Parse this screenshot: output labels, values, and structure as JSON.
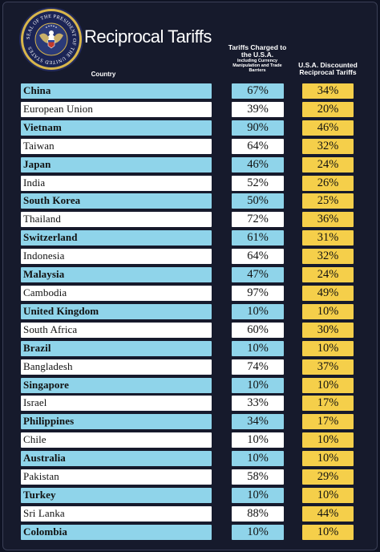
{
  "title": "Reciprocal Tariffs",
  "seal_text": "SEAL OF THE PRESIDENT OF THE UNITED STATES",
  "headers": {
    "country": "Country",
    "charged_main": "Tariffs Charged to the U.S.A.",
    "charged_sub": "Including Currency Manipulation and Trade Barriers",
    "discounted": "U.S.A. Discounted Reciprocal Tariffs"
  },
  "colors": {
    "background": "#161a2c",
    "blue_row": "#8fd4ea",
    "white_row": "#ffffff",
    "discount_cell": "#f5cf4a",
    "seal_gold": "#d8b64b"
  },
  "rows": [
    {
      "country": "China",
      "charged": "67%",
      "discounted": "34%"
    },
    {
      "country": "European Union",
      "charged": "39%",
      "discounted": "20%"
    },
    {
      "country": "Vietnam",
      "charged": "90%",
      "discounted": "46%"
    },
    {
      "country": "Taiwan",
      "charged": "64%",
      "discounted": "32%"
    },
    {
      "country": "Japan",
      "charged": "46%",
      "discounted": "24%"
    },
    {
      "country": "India",
      "charged": "52%",
      "discounted": "26%"
    },
    {
      "country": "South Korea",
      "charged": "50%",
      "discounted": "25%"
    },
    {
      "country": "Thailand",
      "charged": "72%",
      "discounted": "36%"
    },
    {
      "country": "Switzerland",
      "charged": "61%",
      "discounted": "31%"
    },
    {
      "country": "Indonesia",
      "charged": "64%",
      "discounted": "32%"
    },
    {
      "country": "Malaysia",
      "charged": "47%",
      "discounted": "24%"
    },
    {
      "country": "Cambodia",
      "charged": "97%",
      "discounted": "49%"
    },
    {
      "country": "United Kingdom",
      "charged": "10%",
      "discounted": "10%"
    },
    {
      "country": "South Africa",
      "charged": "60%",
      "discounted": "30%"
    },
    {
      "country": "Brazil",
      "charged": "10%",
      "discounted": "10%"
    },
    {
      "country": "Bangladesh",
      "charged": "74%",
      "discounted": "37%"
    },
    {
      "country": "Singapore",
      "charged": "10%",
      "discounted": "10%"
    },
    {
      "country": "Israel",
      "charged": "33%",
      "discounted": "17%"
    },
    {
      "country": "Philippines",
      "charged": "34%",
      "discounted": "17%"
    },
    {
      "country": "Chile",
      "charged": "10%",
      "discounted": "10%"
    },
    {
      "country": "Australia",
      "charged": "10%",
      "discounted": "10%"
    },
    {
      "country": "Pakistan",
      "charged": "58%",
      "discounted": "29%"
    },
    {
      "country": "Turkey",
      "charged": "10%",
      "discounted": "10%"
    },
    {
      "country": "Sri Lanka",
      "charged": "88%",
      "discounted": "44%"
    },
    {
      "country": "Colombia",
      "charged": "10%",
      "discounted": "10%"
    }
  ]
}
